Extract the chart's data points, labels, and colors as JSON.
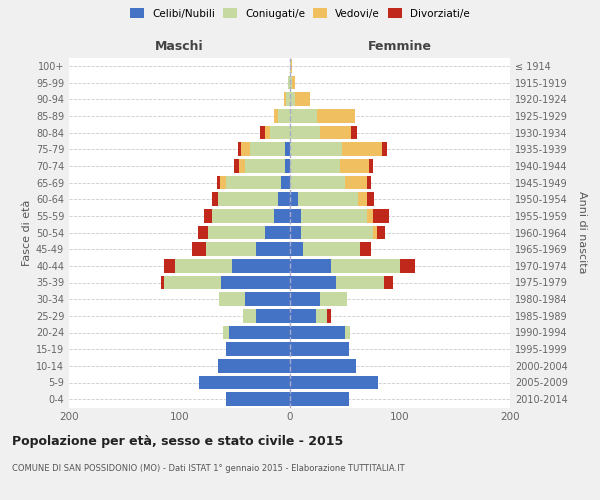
{
  "age_groups": [
    "0-4",
    "5-9",
    "10-14",
    "15-19",
    "20-24",
    "25-29",
    "30-34",
    "35-39",
    "40-44",
    "45-49",
    "50-54",
    "55-59",
    "60-64",
    "65-69",
    "70-74",
    "75-79",
    "80-84",
    "85-89",
    "90-94",
    "95-99",
    "100+"
  ],
  "birth_years": [
    "2010-2014",
    "2005-2009",
    "2000-2004",
    "1995-1999",
    "1990-1994",
    "1985-1989",
    "1980-1984",
    "1975-1979",
    "1970-1974",
    "1965-1969",
    "1960-1964",
    "1955-1959",
    "1950-1954",
    "1945-1949",
    "1940-1944",
    "1935-1939",
    "1930-1934",
    "1925-1929",
    "1920-1924",
    "1915-1919",
    "≤ 1914"
  ],
  "colors": {
    "celibe": "#4472c4",
    "coniugato": "#c5d9a0",
    "vedovo": "#f0c060",
    "divorziato": "#c0281c"
  },
  "male": {
    "celibe": [
      58,
      82,
      65,
      58,
      55,
      30,
      40,
      62,
      52,
      30,
      22,
      14,
      10,
      8,
      4,
      4,
      0,
      0,
      0,
      0,
      0
    ],
    "coniugato": [
      0,
      0,
      0,
      0,
      5,
      12,
      24,
      52,
      52,
      46,
      52,
      56,
      55,
      50,
      36,
      32,
      18,
      10,
      3,
      1,
      0
    ],
    "vedovo": [
      0,
      0,
      0,
      0,
      0,
      0,
      0,
      0,
      0,
      0,
      0,
      0,
      0,
      5,
      6,
      8,
      4,
      4,
      2,
      0,
      0
    ],
    "divorziato": [
      0,
      0,
      0,
      0,
      0,
      0,
      0,
      3,
      10,
      12,
      9,
      8,
      5,
      3,
      4,
      3,
      5,
      0,
      0,
      0,
      0
    ]
  },
  "female": {
    "nubile": [
      54,
      80,
      60,
      54,
      50,
      24,
      28,
      42,
      38,
      12,
      10,
      10,
      8,
      0,
      0,
      0,
      0,
      0,
      0,
      0,
      0
    ],
    "coniugata": [
      0,
      0,
      0,
      0,
      5,
      10,
      24,
      44,
      62,
      52,
      66,
      60,
      54,
      50,
      46,
      48,
      28,
      25,
      5,
      2,
      1
    ],
    "vedova": [
      0,
      0,
      0,
      0,
      0,
      0,
      0,
      0,
      0,
      0,
      3,
      6,
      8,
      20,
      26,
      36,
      28,
      34,
      14,
      3,
      1
    ],
    "divorziata": [
      0,
      0,
      0,
      0,
      0,
      4,
      0,
      8,
      14,
      10,
      8,
      14,
      7,
      4,
      4,
      4,
      5,
      0,
      0,
      0,
      0
    ]
  },
  "xlim": 200,
  "title": "Popolazione per età, sesso e stato civile - 2015",
  "subtitle": "COMUNE DI SAN POSSIDONIO (MO) - Dati ISTAT 1° gennaio 2015 - Elaborazione TUTTITALIA.IT",
  "ylabel_left": "Fasce di età",
  "ylabel_right": "Anni di nascita",
  "xlabel_left": "Maschi",
  "xlabel_right": "Femmine",
  "bg_color": "#f0f0f0",
  "plot_bg": "#ffffff"
}
